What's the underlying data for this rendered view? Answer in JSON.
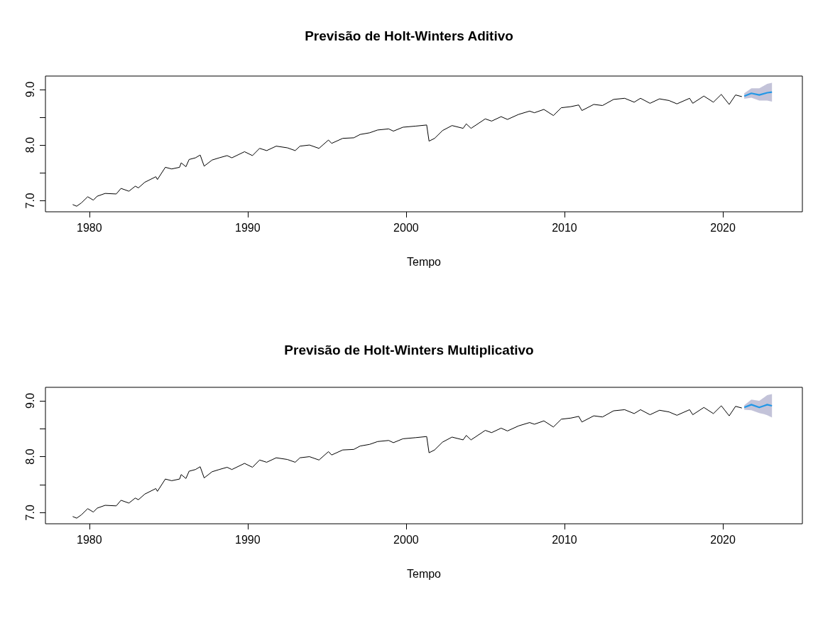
{
  "chart_data": [
    {
      "type": "line",
      "title": "Previsão de Holt-Winters Aditivo",
      "xlabel": "Tempo",
      "xlim": [
        1977.23,
        2025.02
      ],
      "ylim": [
        6.8,
        9.24
      ],
      "xticks": [
        1980,
        1990,
        2000,
        2010,
        2020
      ],
      "yticks": [
        {
          "value": 7,
          "label": "7.0"
        },
        {
          "value": 7.5,
          "label": null
        },
        {
          "value": 8,
          "label": "8.0"
        },
        {
          "value": 8.5,
          "label": null
        },
        {
          "value": 9,
          "label": "9.0"
        }
      ],
      "series": [
        {
          "color": "#000000",
          "x": [
            1978.95,
            1979.2,
            1979.5,
            1979.9,
            1980.25,
            1980.5,
            1981,
            1981.7,
            1982,
            1982.5,
            1982.9,
            1983.1,
            1983.5,
            1984.2,
            1984.3,
            1984.8,
            1985.2,
            1985.7,
            1985.8,
            1986.1,
            1986.3,
            1986.7,
            1987,
            1987.25,
            1987.75,
            1988.2,
            1988.7,
            1989,
            1989.8,
            1990.3,
            1990.75,
            1991.2,
            1991.8,
            1992.5,
            1993,
            1993.3,
            1993.9,
            1994.5,
            1995.1,
            1995.3,
            1996,
            1996.7,
            1997.1,
            1997.7,
            1998.2,
            1998.9,
            1999.2,
            1999.8,
            2000.6,
            2001.3,
            2001.45,
            2001.8,
            2002.3,
            2002.9,
            2003.6,
            2003.8,
            2004.1,
            2005,
            2005.4,
            2006,
            2006.4,
            2007.1,
            2007.8,
            2008.1,
            2008.7,
            2009.3,
            2009.8,
            2010.4,
            2010.9,
            2011.1,
            2011.85,
            2012.4,
            2013.1,
            2013.8,
            2014.4,
            2014.8,
            2015.4,
            2016,
            2016.6,
            2017.1,
            2017.9,
            2018.1,
            2018.8,
            2019.4,
            2019.9,
            2020.4,
            2020.8,
            2021.2
          ],
          "values": [
            6.93,
            6.9,
            6.96,
            7.07,
            7.01,
            7.08,
            7.13,
            7.12,
            7.22,
            7.17,
            7.26,
            7.23,
            7.33,
            7.43,
            7.38,
            7.6,
            7.57,
            7.6,
            7.68,
            7.61,
            7.74,
            7.77,
            7.82,
            7.62,
            7.73,
            7.77,
            7.81,
            7.77,
            7.88,
            7.81,
            7.94,
            7.9,
            7.98,
            7.95,
            7.9,
            7.98,
            8,
            7.94,
            8.09,
            8.03,
            8.12,
            8.13,
            8.19,
            8.22,
            8.27,
            8.29,
            8.25,
            8.32,
            8.34,
            8.36,
            8.07,
            8.12,
            8.26,
            8.35,
            8.3,
            8.38,
            8.3,
            8.47,
            8.43,
            8.51,
            8.46,
            8.55,
            8.61,
            8.58,
            8.64,
            8.53,
            8.67,
            8.69,
            8.72,
            8.62,
            8.73,
            8.71,
            8.82,
            8.84,
            8.77,
            8.84,
            8.75,
            8.83,
            8.8,
            8.74,
            8.84,
            8.75,
            8.88,
            8.77,
            8.91,
            8.73,
            8.9,
            8.87
          ]
        },
        {
          "color": "#2297e6",
          "x": [
            2021.35,
            2021.8,
            2022.3,
            2022.8,
            2023.1
          ],
          "values": [
            8.88,
            8.93,
            8.9,
            8.94,
            8.95
          ],
          "lower": [
            8.83,
            8.85,
            8.8,
            8.8,
            8.78
          ],
          "upper": [
            8.93,
            9.02,
            9.02,
            9.1,
            9.12
          ]
        }
      ]
    },
    {
      "type": "line",
      "title": "Previsão de Holt-Winters Multiplicativo",
      "xlabel": "Tempo",
      "xlim": [
        1977.23,
        2025.02
      ],
      "ylim": [
        6.8,
        9.24
      ],
      "xticks": [
        1980,
        1990,
        2000,
        2010,
        2020
      ],
      "yticks": [
        {
          "value": 7,
          "label": "7.0"
        },
        {
          "value": 7.5,
          "label": null
        },
        {
          "value": 8,
          "label": "8.0"
        },
        {
          "value": 8.5,
          "label": null
        },
        {
          "value": 9,
          "label": "9.0"
        }
      ],
      "series": [
        {
          "color": "#000000",
          "x": [
            1978.95,
            1979.2,
            1979.5,
            1979.9,
            1980.25,
            1980.5,
            1981,
            1981.7,
            1982,
            1982.5,
            1982.9,
            1983.1,
            1983.5,
            1984.2,
            1984.3,
            1984.8,
            1985.2,
            1985.7,
            1985.8,
            1986.1,
            1986.3,
            1986.7,
            1987,
            1987.25,
            1987.75,
            1988.2,
            1988.7,
            1989,
            1989.8,
            1990.3,
            1990.75,
            1991.2,
            1991.8,
            1992.5,
            1993,
            1993.3,
            1993.9,
            1994.5,
            1995.1,
            1995.3,
            1996,
            1996.7,
            1997.1,
            1997.7,
            1998.2,
            1998.9,
            1999.2,
            1999.8,
            2000.6,
            2001.3,
            2001.45,
            2001.8,
            2002.3,
            2002.9,
            2003.6,
            2003.8,
            2004.1,
            2005,
            2005.4,
            2006,
            2006.4,
            2007.1,
            2007.8,
            2008.1,
            2008.7,
            2009.3,
            2009.8,
            2010.4,
            2010.9,
            2011.1,
            2011.85,
            2012.4,
            2013.1,
            2013.8,
            2014.4,
            2014.8,
            2015.4,
            2016,
            2016.6,
            2017.1,
            2017.9,
            2018.1,
            2018.8,
            2019.4,
            2019.9,
            2020.4,
            2020.8,
            2021.2
          ],
          "values": [
            6.93,
            6.9,
            6.96,
            7.07,
            7.01,
            7.08,
            7.13,
            7.12,
            7.22,
            7.17,
            7.26,
            7.23,
            7.33,
            7.43,
            7.38,
            7.6,
            7.57,
            7.6,
            7.68,
            7.61,
            7.74,
            7.77,
            7.82,
            7.62,
            7.73,
            7.77,
            7.81,
            7.77,
            7.88,
            7.81,
            7.94,
            7.9,
            7.98,
            7.95,
            7.9,
            7.98,
            8,
            7.94,
            8.09,
            8.03,
            8.12,
            8.13,
            8.19,
            8.22,
            8.27,
            8.29,
            8.25,
            8.32,
            8.34,
            8.36,
            8.07,
            8.12,
            8.26,
            8.35,
            8.3,
            8.38,
            8.3,
            8.47,
            8.43,
            8.51,
            8.46,
            8.55,
            8.61,
            8.58,
            8.64,
            8.53,
            8.67,
            8.69,
            8.72,
            8.62,
            8.73,
            8.71,
            8.82,
            8.84,
            8.77,
            8.84,
            8.75,
            8.83,
            8.8,
            8.74,
            8.84,
            8.75,
            8.88,
            8.77,
            8.91,
            8.73,
            8.9,
            8.87
          ]
        },
        {
          "color": "#2297e6",
          "x": [
            2021.35,
            2021.8,
            2022.3,
            2022.6,
            2022.8,
            2023.1
          ],
          "values": [
            8.88,
            8.93,
            8.88,
            8.91,
            8.93,
            8.91
          ],
          "lower": [
            8.84,
            8.83,
            8.78,
            8.76,
            8.74,
            8.7
          ],
          "upper": [
            8.92,
            9.02,
            9,
            9.06,
            9.1,
            9.12
          ]
        }
      ]
    }
  ]
}
